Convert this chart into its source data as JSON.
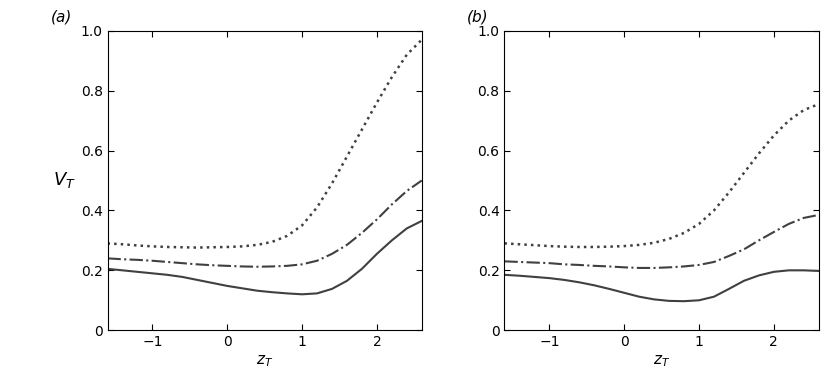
{
  "panel_a": {
    "label": "(a)",
    "ylabel": "$V_T$",
    "xlabel": "$z_T$",
    "xlim": [
      -1.6,
      2.6
    ],
    "ylim": [
      0,
      1.0
    ],
    "xticks": [
      -1,
      0,
      1,
      2
    ],
    "yticks": [
      0,
      0.2,
      0.4,
      0.6,
      0.8,
      1.0
    ],
    "curves": {
      "solid": {
        "x": [
          -1.6,
          -1.4,
          -1.2,
          -1.0,
          -0.8,
          -0.6,
          -0.4,
          -0.2,
          0.0,
          0.2,
          0.4,
          0.6,
          0.8,
          1.0,
          1.2,
          1.4,
          1.6,
          1.8,
          2.0,
          2.2,
          2.4,
          2.6
        ],
        "y": [
          0.205,
          0.2,
          0.195,
          0.19,
          0.185,
          0.178,
          0.168,
          0.158,
          0.148,
          0.14,
          0.132,
          0.127,
          0.123,
          0.12,
          0.123,
          0.138,
          0.165,
          0.205,
          0.255,
          0.3,
          0.34,
          0.365
        ],
        "style": "solid",
        "color": "#404040",
        "lw": 1.5
      },
      "dashdot": {
        "x": [
          -1.6,
          -1.4,
          -1.2,
          -1.0,
          -0.8,
          -0.6,
          -0.4,
          -0.2,
          0.0,
          0.2,
          0.4,
          0.6,
          0.8,
          1.0,
          1.2,
          1.4,
          1.6,
          1.8,
          2.0,
          2.2,
          2.4,
          2.6
        ],
        "y": [
          0.24,
          0.237,
          0.235,
          0.232,
          0.228,
          0.224,
          0.22,
          0.217,
          0.215,
          0.213,
          0.212,
          0.213,
          0.215,
          0.22,
          0.232,
          0.255,
          0.285,
          0.325,
          0.37,
          0.42,
          0.465,
          0.5
        ],
        "style": "dashdot",
        "color": "#404040",
        "lw": 1.5
      },
      "dotted": {
        "x": [
          -1.6,
          -1.4,
          -1.2,
          -1.0,
          -0.8,
          -0.6,
          -0.4,
          -0.2,
          0.0,
          0.2,
          0.4,
          0.6,
          0.8,
          1.0,
          1.2,
          1.4,
          1.6,
          1.8,
          2.0,
          2.2,
          2.4,
          2.6
        ],
        "y": [
          0.29,
          0.287,
          0.283,
          0.28,
          0.278,
          0.277,
          0.276,
          0.277,
          0.278,
          0.28,
          0.285,
          0.295,
          0.315,
          0.35,
          0.41,
          0.49,
          0.58,
          0.67,
          0.76,
          0.845,
          0.92,
          0.97
        ],
        "style": "dotted",
        "color": "#404040",
        "lw": 1.8
      }
    }
  },
  "panel_b": {
    "label": "(b)",
    "xlabel": "$z_T$",
    "xlim": [
      -1.6,
      2.6
    ],
    "ylim": [
      0,
      1.0
    ],
    "xticks": [
      -1,
      0,
      1,
      2
    ],
    "yticks": [
      0,
      0.2,
      0.4,
      0.6,
      0.8,
      1.0
    ],
    "curves": {
      "solid": {
        "x": [
          -1.6,
          -1.4,
          -1.2,
          -1.0,
          -0.8,
          -0.6,
          -0.4,
          -0.2,
          0.0,
          0.2,
          0.4,
          0.6,
          0.8,
          1.0,
          1.2,
          1.4,
          1.6,
          1.8,
          2.0,
          2.2,
          2.4,
          2.6
        ],
        "y": [
          0.185,
          0.182,
          0.178,
          0.174,
          0.168,
          0.16,
          0.15,
          0.138,
          0.125,
          0.112,
          0.103,
          0.098,
          0.097,
          0.1,
          0.112,
          0.138,
          0.165,
          0.183,
          0.195,
          0.2,
          0.2,
          0.198
        ],
        "style": "solid",
        "color": "#404040",
        "lw": 1.5
      },
      "dashdot": {
        "x": [
          -1.6,
          -1.4,
          -1.2,
          -1.0,
          -0.8,
          -0.6,
          -0.4,
          -0.2,
          0.0,
          0.2,
          0.4,
          0.6,
          0.8,
          1.0,
          1.2,
          1.4,
          1.6,
          1.8,
          2.0,
          2.2,
          2.4,
          2.6
        ],
        "y": [
          0.23,
          0.228,
          0.226,
          0.224,
          0.22,
          0.218,
          0.215,
          0.213,
          0.21,
          0.208,
          0.208,
          0.21,
          0.213,
          0.218,
          0.228,
          0.248,
          0.27,
          0.3,
          0.328,
          0.355,
          0.375,
          0.385
        ],
        "style": "dashdot",
        "color": "#404040",
        "lw": 1.5
      },
      "dotted": {
        "x": [
          -1.6,
          -1.4,
          -1.2,
          -1.0,
          -0.8,
          -0.6,
          -0.4,
          -0.2,
          0.0,
          0.2,
          0.4,
          0.6,
          0.8,
          1.0,
          1.2,
          1.4,
          1.6,
          1.8,
          2.0,
          2.2,
          2.4,
          2.6
        ],
        "y": [
          0.29,
          0.287,
          0.284,
          0.281,
          0.279,
          0.278,
          0.278,
          0.279,
          0.281,
          0.285,
          0.292,
          0.305,
          0.325,
          0.355,
          0.4,
          0.46,
          0.525,
          0.59,
          0.65,
          0.7,
          0.735,
          0.755
        ],
        "style": "dotted",
        "color": "#404040",
        "lw": 1.8
      }
    }
  },
  "figure": {
    "bg_color": "#ffffff",
    "text_color": "#000000",
    "tick_fontsize": 10,
    "label_fontsize": 11,
    "figsize": [
      8.27,
      3.84
    ],
    "dpi": 100
  }
}
